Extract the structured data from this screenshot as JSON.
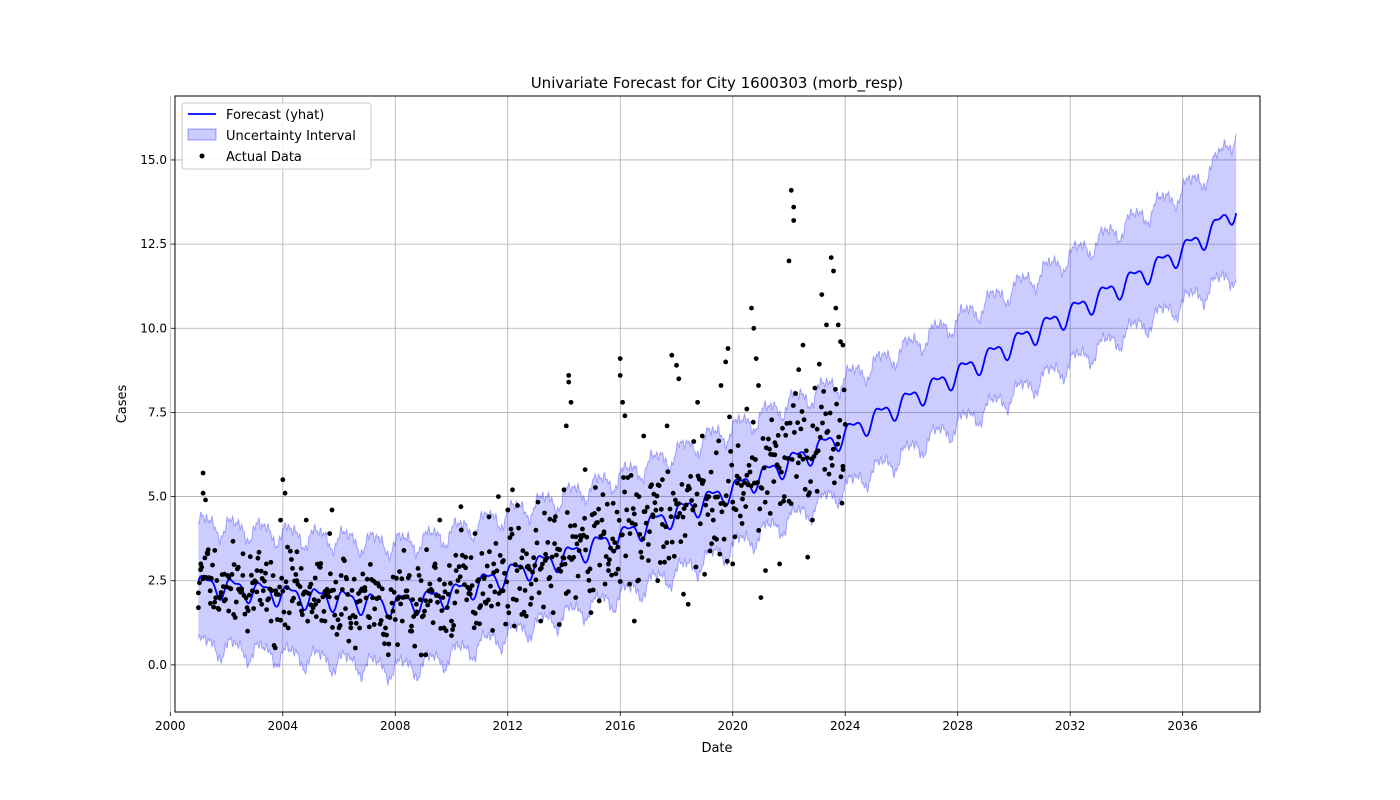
{
  "chart_data": {
    "type": "line",
    "title": "Univariate Forecast for City 1600303 (morb_resp)",
    "xlabel": "Date",
    "ylabel": "Cases",
    "xlim": [
      "2000-03-01",
      "2038-10-01"
    ],
    "ylim": [
      -1.4,
      16.9
    ],
    "x_ticks": [
      "2000",
      "2004",
      "2008",
      "2012",
      "2016",
      "2020",
      "2024",
      "2028",
      "2032",
      "2036"
    ],
    "y_ticks": [
      "0.0",
      "2.5",
      "5.0",
      "7.5",
      "10.0",
      "12.5",
      "15.0"
    ],
    "grid": true,
    "legend_position": "top-left",
    "colors": {
      "forecast": "#0000ff",
      "interval": "#0000ff",
      "actual": "#000000",
      "grid": "#b0b0b0"
    },
    "series": [
      {
        "name": "Forecast (yhat)",
        "kind": "line",
        "x": [
          "2001-01",
          "2002-01",
          "2003-01",
          "2004-01",
          "2005-01",
          "2006-01",
          "2007-01",
          "2008-01",
          "2009-01",
          "2010-01",
          "2011-01",
          "2012-01",
          "2013-01",
          "2014-01",
          "2015-01",
          "2016-01",
          "2017-01",
          "2018-01",
          "2019-01",
          "2020-01",
          "2021-01",
          "2022-01",
          "2023-01",
          "2024-01",
          "2025-01",
          "2026-01",
          "2027-01",
          "2028-01",
          "2029-01",
          "2030-01",
          "2031-01",
          "2032-01",
          "2033-01",
          "2034-01",
          "2035-01",
          "2036-01",
          "2037-01",
          "2037-12"
        ],
        "y": [
          2.4,
          2.3,
          2.2,
          2.1,
          2.0,
          1.95,
          1.85,
          1.8,
          1.9,
          2.1,
          2.4,
          2.7,
          2.95,
          3.2,
          3.5,
          3.8,
          4.15,
          4.5,
          4.85,
          5.2,
          5.6,
          6.0,
          6.4,
          6.85,
          7.3,
          7.75,
          8.2,
          8.65,
          9.1,
          9.55,
          10.0,
          10.45,
          10.9,
          11.35,
          11.8,
          12.3,
          12.85,
          13.6
        ]
      },
      {
        "name": "Uncertainty Interval",
        "kind": "band",
        "x": [
          "2001-01",
          "2002-01",
          "2003-01",
          "2004-01",
          "2005-01",
          "2006-01",
          "2007-01",
          "2008-01",
          "2009-01",
          "2010-01",
          "2011-01",
          "2012-01",
          "2013-01",
          "2014-01",
          "2015-01",
          "2016-01",
          "2017-01",
          "2018-01",
          "2019-01",
          "2020-01",
          "2021-01",
          "2022-01",
          "2023-01",
          "2024-01",
          "2025-01",
          "2026-01",
          "2027-01",
          "2028-01",
          "2029-01",
          "2030-01",
          "2031-01",
          "2032-01",
          "2033-01",
          "2034-01",
          "2035-01",
          "2036-01",
          "2037-01",
          "2037-12"
        ],
        "lower": [
          0.6,
          0.5,
          0.4,
          0.3,
          0.2,
          0.1,
          0.0,
          -0.1,
          0.0,
          0.3,
          0.6,
          0.9,
          1.2,
          1.45,
          1.75,
          2.05,
          2.4,
          2.75,
          3.1,
          3.5,
          3.9,
          4.3,
          4.75,
          5.25,
          5.75,
          6.2,
          6.7,
          7.15,
          7.6,
          8.05,
          8.5,
          8.95,
          9.4,
          9.85,
          10.3,
          10.75,
          11.2,
          11.7
        ],
        "upper": [
          4.2,
          4.1,
          4.0,
          3.9,
          3.8,
          3.75,
          3.65,
          3.6,
          3.7,
          3.95,
          4.2,
          4.5,
          4.75,
          5.0,
          5.3,
          5.6,
          5.95,
          6.3,
          6.7,
          7.0,
          7.4,
          7.8,
          8.1,
          8.5,
          8.9,
          9.35,
          9.8,
          10.25,
          10.75,
          11.2,
          11.65,
          12.15,
          12.6,
          13.1,
          13.6,
          14.1,
          14.7,
          15.9
        ]
      },
      {
        "name": "Actual Data",
        "kind": "scatter",
        "points": [
          [
            "2001-01",
            1.7
          ],
          [
            "2001-02",
            3.0
          ],
          [
            "2001-03",
            5.7
          ],
          [
            "2001-03",
            5.1
          ],
          [
            "2001-04",
            4.9
          ],
          [
            "2001-05",
            3.3
          ],
          [
            "2001-06",
            2.2
          ],
          [
            "2001-08",
            3.4
          ],
          [
            "2001-10",
            2.0
          ],
          [
            "2001-12",
            1.9
          ],
          [
            "2002-02",
            2.6
          ],
          [
            "2002-04",
            1.5
          ],
          [
            "2002-06",
            2.9
          ],
          [
            "2002-08",
            3.3
          ],
          [
            "2002-10",
            1.0
          ],
          [
            "2002-12",
            2.2
          ],
          [
            "2003-02",
            2.8
          ],
          [
            "2003-04",
            1.8
          ],
          [
            "2003-06",
            3.0
          ],
          [
            "2003-08",
            1.3
          ],
          [
            "2003-10",
            2.2
          ],
          [
            "2003-12",
            4.3
          ],
          [
            "2004-01",
            5.5
          ],
          [
            "2004-02",
            5.1
          ],
          [
            "2004-03",
            3.5
          ],
          [
            "2004-05",
            1.9
          ],
          [
            "2004-07",
            2.5
          ],
          [
            "2004-09",
            1.6
          ],
          [
            "2004-11",
            4.3
          ],
          [
            "2005-01",
            2.4
          ],
          [
            "2005-03",
            1.8
          ],
          [
            "2005-05",
            2.9
          ],
          [
            "2005-07",
            1.3
          ],
          [
            "2005-09",
            3.9
          ],
          [
            "2005-10",
            4.6
          ],
          [
            "2005-12",
            2.0
          ],
          [
            "2006-02",
            1.5
          ],
          [
            "2006-04",
            2.6
          ],
          [
            "2006-06",
            1.1
          ],
          [
            "2006-08",
            0.5
          ],
          [
            "2006-10",
            1.9
          ],
          [
            "2006-12",
            2.3
          ],
          [
            "2007-02",
            1.4
          ],
          [
            "2007-04",
            1.2
          ],
          [
            "2007-06",
            2.0
          ],
          [
            "2007-08",
            0.9
          ],
          [
            "2007-10",
            0.3
          ],
          [
            "2007-12",
            1.6
          ],
          [
            "2008-02",
            0.6
          ],
          [
            "2008-04",
            1.3
          ],
          [
            "2008-06",
            2.2
          ],
          [
            "2008-08",
            1.0
          ],
          [
            "2008-10",
            1.8
          ],
          [
            "2008-12",
            2.5
          ],
          [
            "2009-02",
            0.3
          ],
          [
            "2009-04",
            1.9
          ],
          [
            "2009-06",
            3.0
          ],
          [
            "2009-08",
            4.3
          ],
          [
            "2009-10",
            2.4
          ],
          [
            "2010-01",
            1.3
          ],
          [
            "2010-03",
            2.8
          ],
          [
            "2010-05",
            4.7
          ],
          [
            "2010-07",
            3.2
          ],
          [
            "2010-09",
            2.1
          ],
          [
            "2010-11",
            3.9
          ],
          [
            "2011-01",
            1.7
          ],
          [
            "2011-03",
            2.6
          ],
          [
            "2011-05",
            4.4
          ],
          [
            "2011-07",
            3.0
          ],
          [
            "2011-09",
            5.0
          ],
          [
            "2011-11",
            2.2
          ],
          [
            "2012-01",
            4.6
          ],
          [
            "2012-03",
            5.2
          ],
          [
            "2012-05",
            2.8
          ],
          [
            "2012-07",
            1.5
          ],
          [
            "2012-09",
            3.3
          ],
          [
            "2012-11",
            2.4
          ],
          [
            "2013-01",
            4.0
          ],
          [
            "2013-03",
            1.3
          ],
          [
            "2013-05",
            3.1
          ],
          [
            "2013-07",
            2.6
          ],
          [
            "2013-09",
            3.6
          ],
          [
            "2013-11",
            1.2
          ],
          [
            "2014-01",
            5.2
          ],
          [
            "2014-02",
            7.1
          ],
          [
            "2014-03",
            8.6
          ],
          [
            "2014-03",
            8.4
          ],
          [
            "2014-04",
            7.8
          ],
          [
            "2014-06",
            2.0
          ],
          [
            "2014-08",
            3.7
          ],
          [
            "2014-10",
            5.8
          ],
          [
            "2014-12",
            2.2
          ],
          [
            "2015-02",
            4.5
          ],
          [
            "2015-04",
            1.9
          ],
          [
            "2015-06",
            3.9
          ],
          [
            "2015-08",
            2.8
          ],
          [
            "2015-10",
            4.8
          ],
          [
            "2015-12",
            3.5
          ],
          [
            "2016-01",
            9.1
          ],
          [
            "2016-01",
            8.6
          ],
          [
            "2016-02",
            7.8
          ],
          [
            "2016-03",
            7.4
          ],
          [
            "2016-05",
            2.4
          ],
          [
            "2016-07",
            1.3
          ],
          [
            "2016-09",
            5.0
          ],
          [
            "2016-11",
            6.8
          ],
          [
            "2017-01",
            3.1
          ],
          [
            "2017-03",
            4.4
          ],
          [
            "2017-05",
            2.5
          ],
          [
            "2017-07",
            5.5
          ],
          [
            "2017-09",
            7.1
          ],
          [
            "2017-11",
            9.2
          ],
          [
            "2018-01",
            8.9
          ],
          [
            "2018-02",
            8.5
          ],
          [
            "2018-04",
            2.1
          ],
          [
            "2018-06",
            1.8
          ],
          [
            "2018-08",
            4.6
          ],
          [
            "2018-10",
            7.8
          ],
          [
            "2018-12",
            6.8
          ],
          [
            "2019-02",
            5.0
          ],
          [
            "2019-04",
            3.6
          ],
          [
            "2019-06",
            6.3
          ],
          [
            "2019-08",
            8.3
          ],
          [
            "2019-10",
            9.0
          ],
          [
            "2019-11",
            9.4
          ],
          [
            "2020-01",
            3.0
          ],
          [
            "2020-03",
            5.4
          ],
          [
            "2020-05",
            4.2
          ],
          [
            "2020-07",
            7.6
          ],
          [
            "2020-09",
            10.6
          ],
          [
            "2020-10",
            10.0
          ],
          [
            "2020-11",
            9.1
          ],
          [
            "2020-12",
            8.3
          ],
          [
            "2021-01",
            2.0
          ],
          [
            "2021-03",
            2.8
          ],
          [
            "2021-05",
            4.5
          ],
          [
            "2021-07",
            6.6
          ],
          [
            "2021-09",
            3.0
          ],
          [
            "2021-11",
            5.0
          ],
          [
            "2022-01",
            12.0
          ],
          [
            "2022-02",
            14.1
          ],
          [
            "2022-03",
            13.6
          ],
          [
            "2022-03",
            13.2
          ],
          [
            "2022-05",
            6.0
          ],
          [
            "2022-07",
            9.5
          ],
          [
            "2022-09",
            3.2
          ],
          [
            "2022-11",
            4.3
          ],
          [
            "2023-01",
            7.0
          ],
          [
            "2023-03",
            11.0
          ],
          [
            "2023-05",
            10.1
          ],
          [
            "2023-07",
            12.1
          ],
          [
            "2023-08",
            11.7
          ],
          [
            "2023-09",
            10.6
          ],
          [
            "2023-10",
            10.1
          ],
          [
            "2023-11",
            9.6
          ],
          [
            "2023-12",
            5.9
          ],
          [
            "2023-12",
            9.5
          ]
        ]
      }
    ]
  }
}
